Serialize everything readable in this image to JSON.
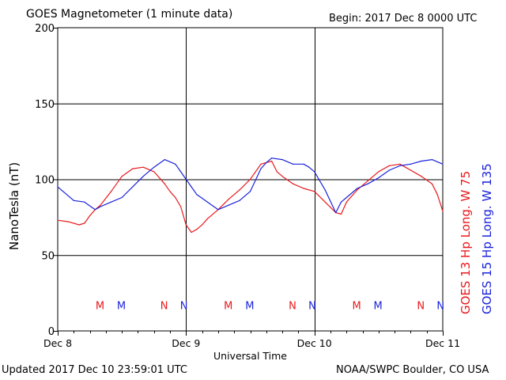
{
  "header": {
    "title": "GOES Magnetometer (1 minute data)",
    "begin": "Begin:  2017 Dec 8 0000 UTC"
  },
  "footer": {
    "updated": "Updated 2017 Dec 10 23:59:01 UTC",
    "credit": "NOAA/SWPC Boulder, CO USA"
  },
  "legend": {
    "goes13": "GOES 13 Hp  Long. W 75",
    "goes15": "GOES 15 Hp  Long. W 135"
  },
  "colors": {
    "goes13": "#e8191c",
    "goes15": "#1a23d9",
    "grid": "#000000"
  },
  "chart_data": {
    "type": "line",
    "xlabel": "Universal Time",
    "ylabel": "NanoTesla (nT)",
    "ylim": [
      0,
      200
    ],
    "yticks": [
      0,
      50,
      100,
      150,
      200
    ],
    "xlim": [
      0,
      72
    ],
    "x_unit": "hours since 2017 Dec 8 0000 UTC",
    "xticks": [
      {
        "x": 0,
        "label": "Dec 8"
      },
      {
        "x": 24,
        "label": "Dec 9"
      },
      {
        "x": 48,
        "label": "Dec 10"
      },
      {
        "x": 72,
        "label": "Dec 11"
      }
    ],
    "grid": true,
    "series": [
      {
        "name": "GOES 13 Hp  Long. W 75",
        "color": "#e8191c",
        "x": [
          0,
          2,
          4,
          5,
          6,
          7,
          8,
          10,
          12,
          14,
          16,
          18,
          20,
          21,
          22,
          23,
          24,
          25,
          26,
          27,
          28,
          30,
          32,
          34,
          36,
          38,
          40,
          41,
          42,
          44,
          46,
          48,
          50,
          52,
          53,
          54,
          56,
          58,
          60,
          62,
          64,
          65,
          66,
          68,
          70,
          71,
          72
        ],
        "values": [
          73,
          72,
          70,
          71,
          76,
          80,
          83,
          92,
          102,
          107,
          108,
          105,
          97,
          92,
          88,
          82,
          70,
          65,
          67,
          70,
          74,
          80,
          87,
          93,
          100,
          110,
          112,
          105,
          102,
          97,
          94,
          92,
          85,
          78,
          77,
          85,
          93,
          99,
          105,
          109,
          110,
          108,
          106,
          102,
          97,
          90,
          79
        ]
      },
      {
        "name": "GOES 15 Hp  Long. W 135",
        "color": "#1a23d9",
        "x": [
          0,
          1,
          3,
          5,
          7,
          8,
          10,
          12,
          14,
          16,
          18,
          20,
          22,
          23,
          24,
          25,
          26,
          28,
          30,
          32,
          34,
          36,
          38,
          39,
          40,
          42,
          44,
          46,
          47,
          48,
          50,
          52,
          53,
          54,
          56,
          58,
          60,
          62,
          64,
          66,
          68,
          70,
          72
        ],
        "values": [
          95,
          92,
          86,
          85,
          80,
          82,
          85,
          88,
          95,
          102,
          108,
          113,
          110,
          105,
          100,
          95,
          90,
          85,
          80,
          83,
          86,
          92,
          107,
          111,
          114,
          113,
          110,
          110,
          108,
          105,
          93,
          78,
          85,
          88,
          94,
          97,
          101,
          106,
          109,
          110,
          112,
          113,
          110
        ]
      }
    ],
    "markers": [
      {
        "label": "M",
        "x": 7.9,
        "series": "GOES 13 Hp  Long. W 75"
      },
      {
        "label": "M",
        "x": 11.9,
        "series": "GOES 15 Hp  Long. W 135"
      },
      {
        "label": "N",
        "x": 19.9,
        "series": "GOES 13 Hp  Long. W 75"
      },
      {
        "label": "N",
        "x": 23.6,
        "series": "GOES 15 Hp  Long. W 135"
      },
      {
        "label": "M",
        "x": 31.9,
        "series": "GOES 13 Hp  Long. W 75"
      },
      {
        "label": "M",
        "x": 35.9,
        "series": "GOES 15 Hp  Long. W 135"
      },
      {
        "label": "N",
        "x": 43.9,
        "series": "GOES 13 Hp  Long. W 75"
      },
      {
        "label": "N",
        "x": 47.6,
        "series": "GOES 15 Hp  Long. W 135"
      },
      {
        "label": "M",
        "x": 55.9,
        "series": "GOES 13 Hp  Long. W 75"
      },
      {
        "label": "M",
        "x": 59.9,
        "series": "GOES 15 Hp  Long. W 135"
      },
      {
        "label": "N",
        "x": 67.9,
        "series": "GOES 13 Hp  Long. W 75"
      },
      {
        "label": "N",
        "x": 71.6,
        "series": "GOES 15 Hp  Long. W 135"
      }
    ],
    "marker_level": 17
  }
}
